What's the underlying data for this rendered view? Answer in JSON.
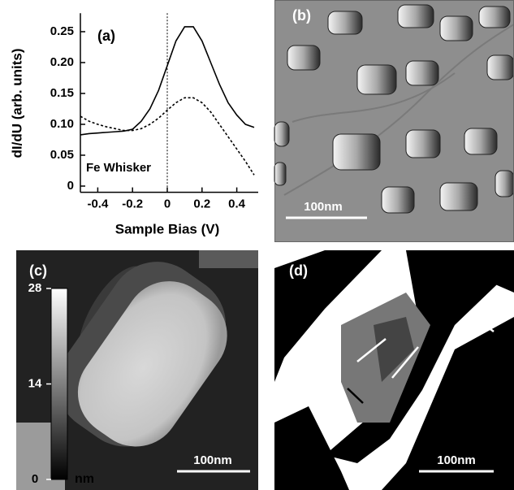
{
  "chart_data": {
    "type": "line",
    "annotations": [
      "(a)",
      "Fe Whisker"
    ],
    "xlabel": "Sample Bias (V)",
    "ylabel": "dI/dU (arb. units)",
    "x": [
      -0.5,
      -0.45,
      -0.4,
      -0.35,
      -0.3,
      -0.25,
      -0.2,
      -0.15,
      -0.1,
      -0.05,
      0,
      0.05,
      0.1,
      0.15,
      0.2,
      0.25,
      0.3,
      0.35,
      0.4,
      0.45,
      0.5
    ],
    "series": [
      {
        "color": "#000000",
        "style": "solid",
        "values": [
          0.083,
          0.085,
          0.086,
          0.087,
          0.088,
          0.089,
          0.092,
          0.105,
          0.125,
          0.155,
          0.195,
          0.235,
          0.258,
          0.258,
          0.235,
          0.2,
          0.165,
          0.135,
          0.115,
          0.1,
          0.095
        ]
      },
      {
        "color": "#000000",
        "style": "dashed",
        "values": [
          0.113,
          0.105,
          0.1,
          0.096,
          0.093,
          0.09,
          0.09,
          0.093,
          0.1,
          0.11,
          0.123,
          0.135,
          0.143,
          0.143,
          0.135,
          0.12,
          0.1,
          0.08,
          0.06,
          0.04,
          0.018
        ]
      }
    ],
    "vline": 0,
    "xlim": [
      -0.5,
      0.5
    ],
    "xticks": [
      -0.4,
      -0.2,
      0,
      0.2,
      0.4
    ],
    "ylim": [
      -0.01,
      0.28
    ],
    "yticks": [
      0,
      0.05,
      {
        "value": 0.1,
        "label": "0.10"
      },
      0.15,
      {
        "value": 0.2,
        "label": "0.20"
      },
      0.25
    ]
  },
  "panels": [
    {
      "label": "(b)",
      "scale_bar": "100nm"
    },
    {
      "label": "(c)",
      "scale_bar": "100nm",
      "colorbar": {
        "lim": [
          0,
          28
        ],
        "ticks": [
          0,
          14,
          28
        ],
        "unit": "nm"
      }
    },
    {
      "label": "(d)",
      "scale_bar": "100nm"
    }
  ]
}
